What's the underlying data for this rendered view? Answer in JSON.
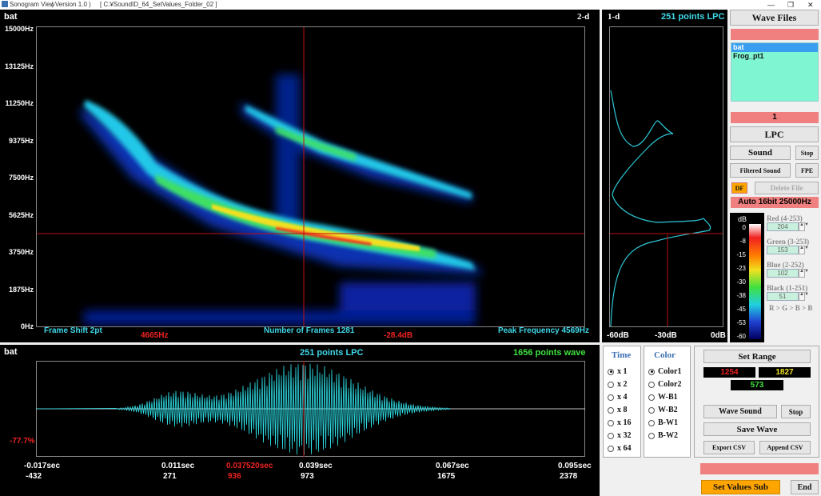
{
  "titlebar": {
    "app": "Sonogram View",
    "version": "( Version 1.0 )",
    "path": "[ C:¥SoundID_64_SetValues_Folder_02 ]"
  },
  "spectrogram": {
    "name": "bat",
    "mode": "2-d",
    "yticks": [
      "15000Hz",
      "13125Hz",
      "11250Hz",
      "9375Hz",
      "7500Hz",
      "5625Hz",
      "3750Hz",
      "1875Hz",
      "0Hz"
    ],
    "frame_shift": "Frame Shift 2pt",
    "cursor_freq": "4665Hz",
    "frames": "Number of Frames 1281",
    "cursor_db": "-28.4dB",
    "peak": "Peak Frequency 4569Hz"
  },
  "lpc_panel": {
    "mode": "1-d",
    "title": "251 points LPC",
    "xticks": [
      "-60dB",
      "-30dB",
      "0dB"
    ]
  },
  "wave": {
    "name": "bat",
    "lpc": "251 points LPC",
    "points": "1656 points wave",
    "level": "-77.7%",
    "times": [
      "-0.017sec",
      "0.011sec",
      "0.037520sec",
      "0.039sec",
      "0.067sec",
      "0.095sec"
    ],
    "samples": [
      "-432",
      "271",
      "936",
      "973",
      "1675",
      "2378"
    ]
  },
  "right": {
    "wave_files": "Wave Files",
    "files": [
      "bat",
      "Frog_pt1"
    ],
    "index": "1",
    "lpc": "LPC",
    "sound": "Sound",
    "stop": "Stop",
    "filtered": "Filtered Sound",
    "fpe": "FPE",
    "df": "DF",
    "delete": "Delete File",
    "format": "Auto   16bit   25000Hz",
    "db_label": "dB",
    "db_ticks": [
      "0",
      "-8",
      "-15",
      "-23",
      "-30",
      "-38",
      "-45",
      "-53",
      "-60"
    ],
    "red_label": "Red (4-253)",
    "red": "204",
    "green_label": "Green (3-253)",
    "green": "153",
    "blue_label": "Blue (2-252)",
    "blue": "102",
    "black_label": "Black (1-251)",
    "black": "51",
    "order_note": "R > G > B > B"
  },
  "time_box": {
    "title": "Time",
    "options": [
      "x 1",
      "x 2",
      "x 4",
      "x 8",
      "x 16",
      "x 32",
      "x 64"
    ],
    "selected": 0
  },
  "color_box": {
    "title": "Color",
    "options": [
      "Color1",
      "Color2",
      "W-B1",
      "W-B2",
      "B-W1",
      "B-W2"
    ],
    "selected": 0
  },
  "range_box": {
    "set_range": "Set  Range",
    "start": "1254",
    "end": "1827",
    "count": "573",
    "wave_sound": "Wave Sound",
    "stop": "Stop",
    "save_wave": "Save Wave",
    "export_csv": "Export CSV",
    "append_csv": "Append CSV"
  },
  "bottom": {
    "set_values": "Set Values Sub",
    "end": "End"
  },
  "colors": {
    "accent_red": "#f08080",
    "cyan": "#3fd8e8",
    "green_text": "#3fe03f",
    "file_bg": "#7ff5d2",
    "orange": "#ffa500"
  }
}
